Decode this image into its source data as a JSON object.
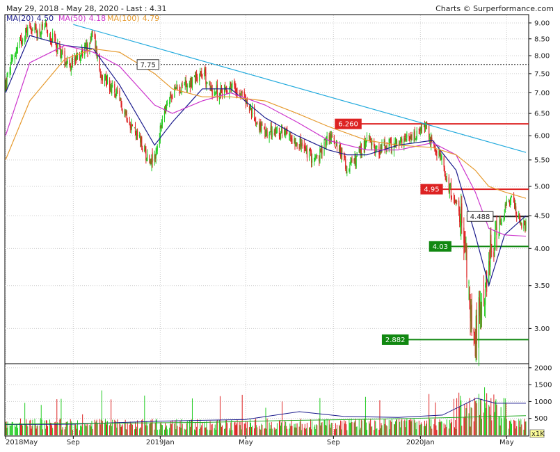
{
  "header": {
    "range": "May 29, 2018 - May 28, 2020 - Last : 4.31",
    "credit": "Charts © Surperformance.com"
  },
  "legend": [
    {
      "label": "MA(20)",
      "value": "4.50",
      "color": "#1a1a8c"
    },
    {
      "label": "MA(50)",
      "value": "4.18",
      "color": "#cc33cc"
    },
    {
      "label": "MA(100)",
      "value": "4.79",
      "color": "#e69a2e"
    }
  ],
  "colors": {
    "up": "#22cc22",
    "down": "#dd2222",
    "trend": "#22aadd",
    "volume_ma": "#1a1a8c"
  },
  "chart_data": {
    "type": "candlestick",
    "scale": "log",
    "ylim": [
      2.65,
      9.25
    ],
    "yticks": [
      "9.00",
      "8.50",
      "8.00",
      "7.50",
      "7.00",
      "6.50",
      "6.00",
      "5.50",
      "5.00",
      "4.50",
      "4.00",
      "3.50",
      "3.00"
    ],
    "xticks": [
      "2018May",
      "Sep",
      "2019Jan",
      "May",
      "Sep",
      "2020Jan",
      "May"
    ],
    "xlim": [
      "2018-05-29",
      "2020-05-28"
    ],
    "close_path": [
      [
        "2018-05-29",
        7.2
      ],
      [
        "2018-06-08",
        7.9
      ],
      [
        "2018-06-20",
        8.5
      ],
      [
        "2018-07-02",
        8.9
      ],
      [
        "2018-07-12",
        8.7
      ],
      [
        "2018-07-24",
        8.8
      ],
      [
        "2018-08-06",
        8.4
      ],
      [
        "2018-08-20",
        7.9
      ],
      [
        "2018-09-01",
        7.75
      ],
      [
        "2018-09-12",
        8.1
      ],
      [
        "2018-09-22",
        8.3
      ],
      [
        "2018-09-29",
        8.7
      ],
      [
        "2018-10-08",
        7.6
      ],
      [
        "2018-10-22",
        7.2
      ],
      [
        "2018-11-05",
        6.8
      ],
      [
        "2018-11-20",
        6.3
      ],
      [
        "2018-12-03",
        5.9
      ],
      [
        "2018-12-14",
        5.55
      ],
      [
        "2018-12-24",
        5.5
      ],
      [
        "2019-01-05",
        6.4
      ],
      [
        "2019-01-18",
        7.0
      ],
      [
        "2019-02-01",
        7.2
      ],
      [
        "2019-02-15",
        7.3
      ],
      [
        "2019-03-01",
        7.6
      ],
      [
        "2019-03-12",
        7.1
      ],
      [
        "2019-03-25",
        7.0
      ],
      [
        "2019-04-10",
        7.2
      ],
      [
        "2019-04-25",
        7.0
      ],
      [
        "2019-05-10",
        6.5
      ],
      [
        "2019-05-28",
        6.0
      ],
      [
        "2019-06-12",
        6.1
      ],
      [
        "2019-06-28",
        6.0
      ],
      [
        "2019-07-12",
        5.9
      ],
      [
        "2019-07-28",
        5.6
      ],
      [
        "2019-08-10",
        5.5
      ],
      [
        "2019-08-25",
        6.0
      ],
      [
        "2019-09-08",
        5.8
      ],
      [
        "2019-09-20",
        5.3
      ],
      [
        "2019-10-02",
        5.5
      ],
      [
        "2019-10-18",
        5.9
      ],
      [
        "2019-11-02",
        5.7
      ],
      [
        "2019-11-18",
        5.8
      ],
      [
        "2019-12-01",
        5.8
      ],
      [
        "2019-12-14",
        5.9
      ],
      [
        "2019-12-28",
        6.0
      ],
      [
        "2020-01-08",
        6.2
      ],
      [
        "2020-01-18",
        5.8
      ],
      [
        "2020-01-30",
        5.5
      ],
      [
        "2020-02-10",
        5.0
      ],
      [
        "2020-02-20",
        4.7
      ],
      [
        "2020-03-01",
        4.2
      ],
      [
        "2020-03-10",
        3.4
      ],
      [
        "2020-03-18",
        2.9
      ],
      [
        "2020-03-26",
        3.3
      ],
      [
        "2020-04-06",
        3.8
      ],
      [
        "2020-04-17",
        4.2
      ],
      [
        "2020-04-28",
        4.6
      ],
      [
        "2020-05-06",
        4.8
      ],
      [
        "2020-05-16",
        4.5
      ],
      [
        "2020-05-28",
        4.31
      ]
    ],
    "moving_averages": [
      {
        "name": "MA(20)",
        "points": [
          [
            "2018-05-29",
            7.0
          ],
          [
            "2018-07-02",
            8.6
          ],
          [
            "2018-08-20",
            8.3
          ],
          [
            "2018-09-29",
            8.2
          ],
          [
            "2018-11-05",
            7.2
          ],
          [
            "2018-12-24",
            5.8
          ],
          [
            "2019-01-18",
            6.3
          ],
          [
            "2019-03-01",
            7.1
          ],
          [
            "2019-04-10",
            7.1
          ],
          [
            "2019-05-28",
            6.4
          ],
          [
            "2019-07-12",
            6.0
          ],
          [
            "2019-08-25",
            5.7
          ],
          [
            "2019-09-20",
            5.6
          ],
          [
            "2019-10-18",
            5.6
          ],
          [
            "2019-12-01",
            5.8
          ],
          [
            "2020-01-18",
            5.9
          ],
          [
            "2020-02-20",
            5.3
          ],
          [
            "2020-03-18",
            4.2
          ],
          [
            "2020-04-06",
            3.5
          ],
          [
            "2020-04-28",
            4.2
          ],
          [
            "2020-05-28",
            4.5
          ]
        ]
      },
      {
        "name": "MA(50)",
        "points": [
          [
            "2018-05-29",
            6.0
          ],
          [
            "2018-07-02",
            7.8
          ],
          [
            "2018-08-20",
            8.3
          ],
          [
            "2018-09-29",
            8.1
          ],
          [
            "2018-11-05",
            7.7
          ],
          [
            "2018-12-24",
            6.7
          ],
          [
            "2019-01-18",
            6.5
          ],
          [
            "2019-03-01",
            6.8
          ],
          [
            "2019-04-10",
            7.0
          ],
          [
            "2019-05-28",
            6.7
          ],
          [
            "2019-07-12",
            6.3
          ],
          [
            "2019-08-25",
            5.9
          ],
          [
            "2019-10-18",
            5.7
          ],
          [
            "2019-12-01",
            5.7
          ],
          [
            "2020-01-18",
            5.85
          ],
          [
            "2020-02-20",
            5.6
          ],
          [
            "2020-03-18",
            4.9
          ],
          [
            "2020-04-06",
            4.3
          ],
          [
            "2020-04-28",
            4.2
          ],
          [
            "2020-05-28",
            4.18
          ]
        ]
      },
      {
        "name": "MA(100)",
        "points": [
          [
            "2018-05-29",
            5.5
          ],
          [
            "2018-07-02",
            6.8
          ],
          [
            "2018-08-20",
            7.9
          ],
          [
            "2018-09-29",
            8.2
          ],
          [
            "2018-11-05",
            8.1
          ],
          [
            "2018-12-24",
            7.5
          ],
          [
            "2019-01-18",
            7.1
          ],
          [
            "2019-03-01",
            6.9
          ],
          [
            "2019-04-10",
            6.9
          ],
          [
            "2019-05-28",
            6.8
          ],
          [
            "2019-07-12",
            6.5
          ],
          [
            "2019-08-25",
            6.2
          ],
          [
            "2019-10-18",
            5.9
          ],
          [
            "2019-12-01",
            5.8
          ],
          [
            "2020-01-18",
            5.75
          ],
          [
            "2020-02-20",
            5.6
          ],
          [
            "2020-03-18",
            5.3
          ],
          [
            "2020-04-06",
            5.0
          ],
          [
            "2020-04-28",
            4.9
          ],
          [
            "2020-05-28",
            4.79
          ]
        ]
      }
    ],
    "trendline": [
      [
        "2018-09-01",
        8.95
      ],
      [
        "2020-05-28",
        5.65
      ]
    ],
    "levels": [
      {
        "label": "7.75",
        "value": 7.75,
        "style": "dashed",
        "color": "#222222",
        "box": "outline",
        "from": "2018-12-30"
      },
      {
        "label": "6.260",
        "value": 6.26,
        "style": "solid",
        "color": "#dd2222",
        "box": "red",
        "from": "2019-10-10"
      },
      {
        "label": "4.95",
        "value": 4.95,
        "style": "solid",
        "color": "#dd2222",
        "box": "red",
        "from": "2020-02-01"
      },
      {
        "label": "4.488",
        "value": 4.488,
        "style": "solid",
        "color": "#222222",
        "box": "outline",
        "from": "2020-04-12"
      },
      {
        "label": "4.03",
        "value": 4.03,
        "style": "solid",
        "color": "#118811",
        "box": "green",
        "from": "2020-02-13"
      },
      {
        "label": "2.882",
        "value": 2.882,
        "style": "solid",
        "color": "#118811",
        "box": "green",
        "from": "2019-12-15"
      }
    ],
    "volume": {
      "yticks": [
        "2000",
        "1500",
        "1000",
        "500"
      ],
      "ylim": [
        0,
        2100
      ],
      "unit": "x1K",
      "ma_path": [
        [
          "2018-05-29",
          320
        ],
        [
          "2018-09-01",
          330
        ],
        [
          "2019-01-01",
          420
        ],
        [
          "2019-05-01",
          470
        ],
        [
          "2019-07-15",
          700
        ],
        [
          "2019-09-15",
          560
        ],
        [
          "2019-12-01",
          530
        ],
        [
          "2020-02-01",
          600
        ],
        [
          "2020-03-20",
          1100
        ],
        [
          "2020-04-15",
          950
        ],
        [
          "2020-05-28",
          950
        ]
      ],
      "baseline": [
        [
          "2018-05-29",
          330
        ],
        [
          "2018-11-01",
          360
        ],
        [
          "2019-03-01",
          380
        ],
        [
          "2019-07-01",
          440
        ],
        [
          "2019-11-01",
          480
        ],
        [
          "2020-02-01",
          520
        ],
        [
          "2020-05-28",
          580
        ]
      ]
    }
  }
}
